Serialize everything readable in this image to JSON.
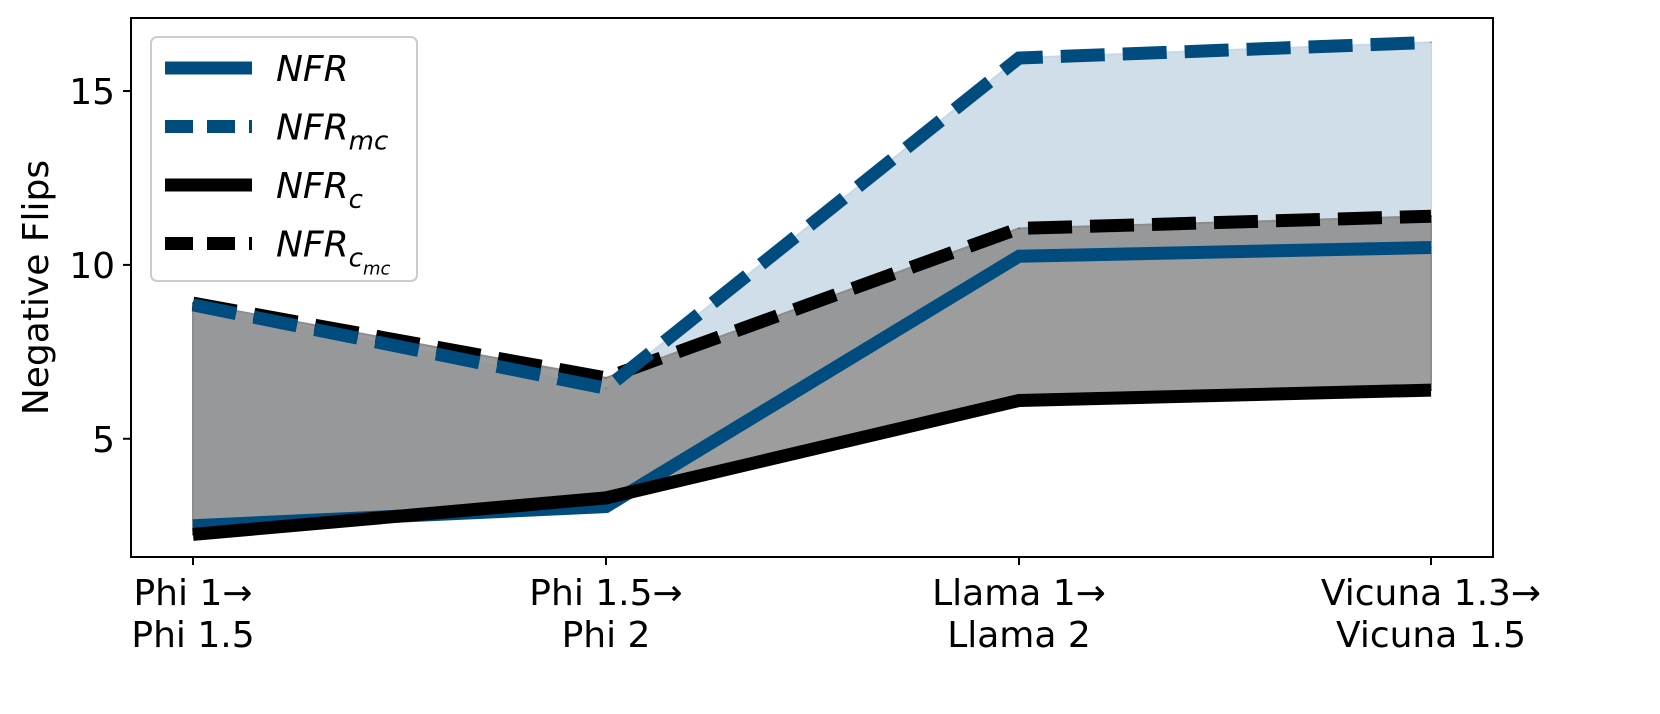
{
  "chart_data": {
    "type": "line",
    "ylabel": "Negative Flips",
    "xlabel": "",
    "categories": [
      [
        "Phi 1→",
        "Phi 1.5"
      ],
      [
        "Phi 1.5→",
        "Phi 2"
      ],
      [
        "Llama 1→",
        "Llama 2"
      ],
      [
        "Vicuna 1.3→",
        "Vicuna 1.5"
      ]
    ],
    "ylim": [
      1.6,
      17.1
    ],
    "yticks": [
      "5",
      "10",
      "15"
    ],
    "ytick_values": [
      5,
      10,
      15
    ],
    "grid": false,
    "legend_position": "top-left",
    "series": [
      {
        "name": "NFR",
        "sub": "",
        "subsub": "",
        "values": [
          2.5,
          3.05,
          10.25,
          10.5
        ],
        "color": "#004c7f",
        "dashed": false
      },
      {
        "name": "NFR",
        "sub": "mc",
        "subsub": "",
        "values": [
          8.85,
          6.45,
          15.95,
          16.4
        ],
        "color": "#004c7f",
        "dashed": true
      },
      {
        "name": "NFR",
        "sub": "c",
        "subsub": "",
        "values": [
          2.25,
          3.3,
          6.1,
          6.4
        ],
        "color": "#000000",
        "dashed": false
      },
      {
        "name": "NFR",
        "sub": "c",
        "subsub": "mc",
        "values": [
          8.9,
          6.75,
          11.05,
          11.4
        ],
        "color": "#000000",
        "dashed": true
      }
    ],
    "fills": [
      {
        "between": [
          0,
          1
        ],
        "color": "#c8d8e6"
      },
      {
        "between": [
          2,
          3
        ],
        "color": "#8c8c8c"
      }
    ]
  }
}
